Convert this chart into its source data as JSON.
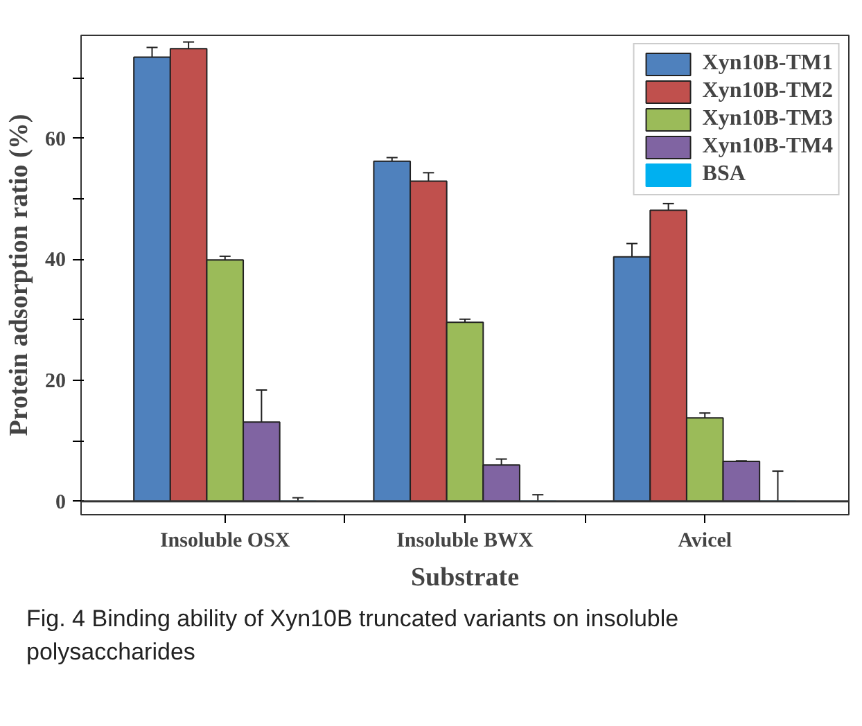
{
  "chart_data": {
    "type": "bar",
    "xlabel": "Substrate",
    "ylabel": "Protein adsorption ratio (%)",
    "categories": [
      "Insoluble OSX",
      "Insoluble BWX",
      "Avicel"
    ],
    "series": [
      {
        "name": "Xyn10B-TM1",
        "color": "#4f81bd",
        "values": [
          73.4,
          56.2,
          40.4
        ],
        "errors": [
          [
            73.4,
            75.0
          ],
          [
            56.2,
            56.8
          ],
          [
            40.4,
            42.6
          ]
        ]
      },
      {
        "name": "Xyn10B-TM2",
        "color": "#c0504d",
        "values": [
          74.8,
          52.9,
          48.1
        ],
        "errors": [
          [
            74.8,
            75.9
          ],
          [
            52.9,
            54.3
          ],
          [
            48.1,
            49.2
          ]
        ]
      },
      {
        "name": "Xyn10B-TM3",
        "color": "#9bbb59",
        "values": [
          39.9,
          29.6,
          13.8
        ],
        "errors": [
          [
            39.9,
            40.5
          ],
          [
            29.6,
            30.1
          ],
          [
            13.8,
            14.6
          ]
        ]
      },
      {
        "name": "Xyn10B-TM4",
        "color": "#8064a2",
        "values": [
          13.1,
          6.0,
          6.6
        ],
        "errors": [
          [
            13.1,
            18.4
          ],
          [
            6.0,
            7.0
          ],
          [
            6.6,
            6.7
          ]
        ]
      },
      {
        "name": "BSA",
        "color": "#00b0f0",
        "values": [
          0,
          0,
          0
        ],
        "errors": [
          [
            0,
            0.6
          ],
          [
            0,
            1.1
          ],
          [
            0,
            5.0
          ]
        ]
      }
    ],
    "ylim": [
      -2.2,
      77
    ],
    "yticks": [
      0,
      {
        "value": 10,
        "label": null
      },
      20,
      {
        "value": 30,
        "label": null
      },
      40,
      {
        "value": 50,
        "label": null
      },
      60,
      {
        "value": 70,
        "label": null
      }
    ],
    "ref_lines": [
      {
        "axis": "y",
        "value": 0,
        "color": "#333333"
      }
    ],
    "legend": "top right",
    "grid": false,
    "annotations": [
      "Fig. 4  Binding ability of Xyn10B truncated variants on insoluble polysaccharides"
    ]
  }
}
